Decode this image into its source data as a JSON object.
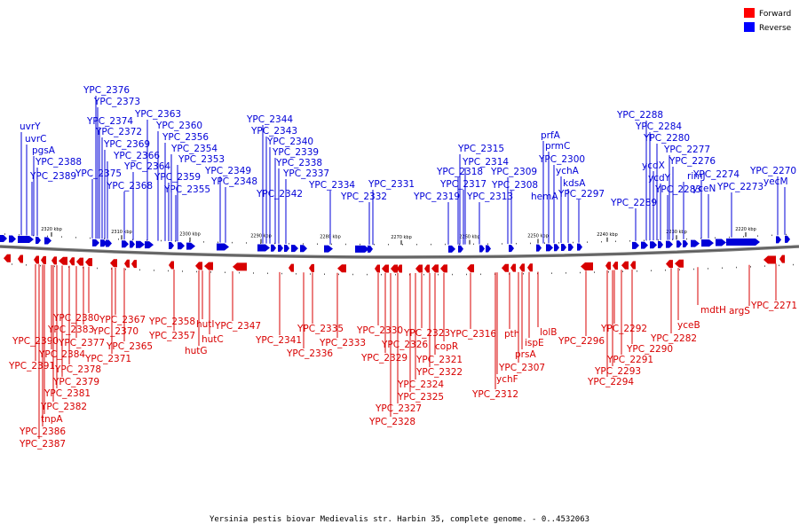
{
  "caption": "Yersinia pestis biovar Medievalis str. Harbin 35, complete genome. - 0..4532063",
  "legend": [
    {
      "label": "Forward",
      "color": "#ff0000"
    },
    {
      "label": "Reverse",
      "color": "#0000ff"
    }
  ],
  "ticks": [
    "2320 kbp",
    "2310 kbp",
    "2300 kbp",
    "2290 kbp",
    "2280 kbp",
    "2270 kbp",
    "2260 kbp",
    "2250 kbp",
    "2240 kbp",
    "2230 kbp",
    "2220 kbp"
  ],
  "reverse_labels": [
    "uvrY",
    "uvrC",
    "pgsA",
    "YPC_2388",
    "YPC_2389",
    "YPC_2376",
    "YPC_2373",
    "YPC_2374",
    "YPC_2372",
    "YPC_2369",
    "YPC_2366",
    "YPC_2375",
    "YPC_2364",
    "YPC_2368",
    "YPC_2363",
    "YPC_2360",
    "YPC_2356",
    "YPC_2354",
    "YPC_2353",
    "YPC_2359",
    "YPC_2355",
    "YPC_2349",
    "YPC_2348",
    "YPC_2344",
    "YPC_2343",
    "YPC_2340",
    "YPC_2339",
    "YPC_2338",
    "YPC_2337",
    "YPC_2342",
    "YPC_2334",
    "YPC_2332",
    "YPC_2331",
    "YPC_2319",
    "YPC_2315",
    "YPC_2314",
    "YPC_2318",
    "YPC_2317",
    "YPC_2313",
    "YPC_2309",
    "YPC_2308",
    "prfA",
    "prmC",
    "YPC_2300",
    "ychA",
    "kdsA",
    "hemA",
    "YPC_2297",
    "YPC_2289",
    "YPC_2288",
    "YPC_2284",
    "YPC_2280",
    "ycdX",
    "YPC_2277",
    "ycdY",
    "YPC_2276",
    "rimJ",
    "YPC_2283",
    "YPC_2274",
    "yceN",
    "YPC_2273",
    "YPC_2270",
    "yecM"
  ],
  "forward_labels": [
    "YPC_2390",
    "YPC_2391",
    "YPC_2380",
    "YPC_2383",
    "YPC_2384",
    "YPC_2377",
    "YPC_2378",
    "YPC_2379",
    "YPC_2381",
    "YPC_2382",
    "tnpA",
    "YPC_2386",
    "YPC_2387",
    "YPC_2367",
    "YPC_2370",
    "YPC_2365",
    "YPC_2371",
    "YPC_2358",
    "YPC_2357",
    "hutI",
    "hutC",
    "hutG",
    "YPC_2347",
    "YPC_2341",
    "YPC_2335",
    "YPC_2336",
    "YPC_2333",
    "YPC_2330",
    "YPC_2329",
    "YPC_2326",
    "YPC_2327",
    "YPC_2328",
    "YPC_2323",
    "YPC_2321",
    "YPC_2322",
    "YPC_2324",
    "YPC_2325",
    "copR",
    "YPC_2316",
    "ychF",
    "YPC_2312",
    "pth",
    "prsA",
    "YPC_2307",
    "ispE",
    "lolB",
    "YPC_2296",
    "YPC_2292",
    "YPC_2290",
    "YPC_2291",
    "YPC_2293",
    "YPC_2294",
    "YPC_2282",
    "yceB",
    "mdtH",
    "argS",
    "YPC_2271"
  ]
}
